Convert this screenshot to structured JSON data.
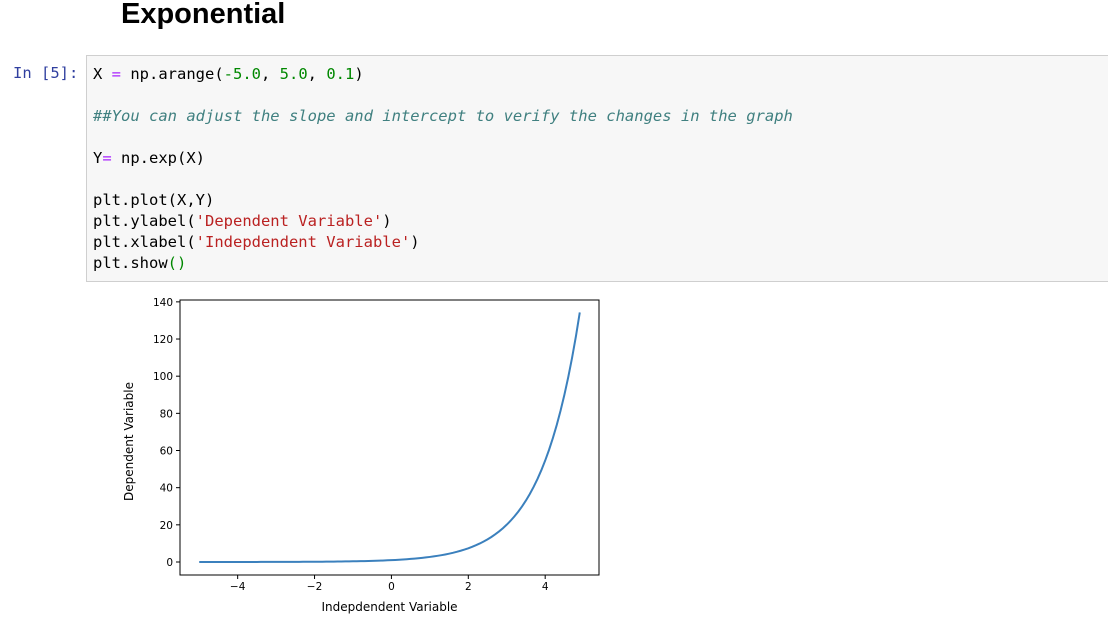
{
  "heading": "Exponential",
  "cell": {
    "prompt": "In [5]:",
    "code_lines": [
      [
        {
          "t": "X ",
          "c": ""
        },
        {
          "t": "=",
          "c": "c-op"
        },
        {
          "t": " np.arange(",
          "c": ""
        },
        {
          "t": "-5.0",
          "c": "c-num"
        },
        {
          "t": ", ",
          "c": ""
        },
        {
          "t": "5.0",
          "c": "c-num"
        },
        {
          "t": ", ",
          "c": ""
        },
        {
          "t": "0.1",
          "c": "c-num"
        },
        {
          "t": ")",
          "c": ""
        }
      ],
      [],
      [
        {
          "t": "##You can adjust the slope and intercept to verify the changes in the graph",
          "c": "c-com"
        }
      ],
      [],
      [
        {
          "t": "Y",
          "c": ""
        },
        {
          "t": "=",
          "c": "c-op"
        },
        {
          "t": " np.exp(X)",
          "c": ""
        }
      ],
      [],
      [
        {
          "t": "plt.plot(X,Y)",
          "c": ""
        }
      ],
      [
        {
          "t": "plt.ylabel(",
          "c": ""
        },
        {
          "t": "'Dependent Variable'",
          "c": "c-str"
        },
        {
          "t": ")",
          "c": ""
        }
      ],
      [
        {
          "t": "plt.xlabel(",
          "c": ""
        },
        {
          "t": "'Indepdendent Variable'",
          "c": "c-str"
        },
        {
          "t": ")",
          "c": ""
        }
      ],
      [
        {
          "t": "plt.show",
          "c": ""
        },
        {
          "t": "()",
          "c": "c-paren"
        }
      ]
    ]
  },
  "chart_data": {
    "type": "line",
    "xlabel": "Indepdendent Variable",
    "ylabel": "Dependent Variable",
    "x_start": -5.0,
    "x_stop": 5.0,
    "x_step": 0.1,
    "function": "exp",
    "xlim": [
      -5.5,
      5.4
    ],
    "ylim": [
      -7,
      141
    ],
    "xticks": [
      -4,
      -2,
      0,
      2,
      4
    ],
    "xtick_labels": [
      "−4",
      "−2",
      "0",
      "2",
      "4"
    ],
    "yticks": [
      0,
      20,
      40,
      60,
      80,
      100,
      120,
      140
    ],
    "ytick_labels": [
      "0",
      "20",
      "40",
      "60",
      "80",
      "100",
      "120",
      "140"
    ],
    "line_color": "#3b80bd",
    "grid": false,
    "series": [
      {
        "x": [
          -5.0,
          -4.0,
          -3.0,
          -2.0,
          -1.0,
          0.0,
          1.0,
          2.0,
          2.5,
          3.0,
          3.5,
          4.0,
          4.5,
          4.9
        ],
        "values": [
          0.0067,
          0.018,
          0.05,
          0.14,
          0.37,
          1.0,
          2.72,
          7.39,
          12.18,
          20.09,
          33.12,
          54.6,
          90.02,
          134.29
        ]
      }
    ]
  }
}
